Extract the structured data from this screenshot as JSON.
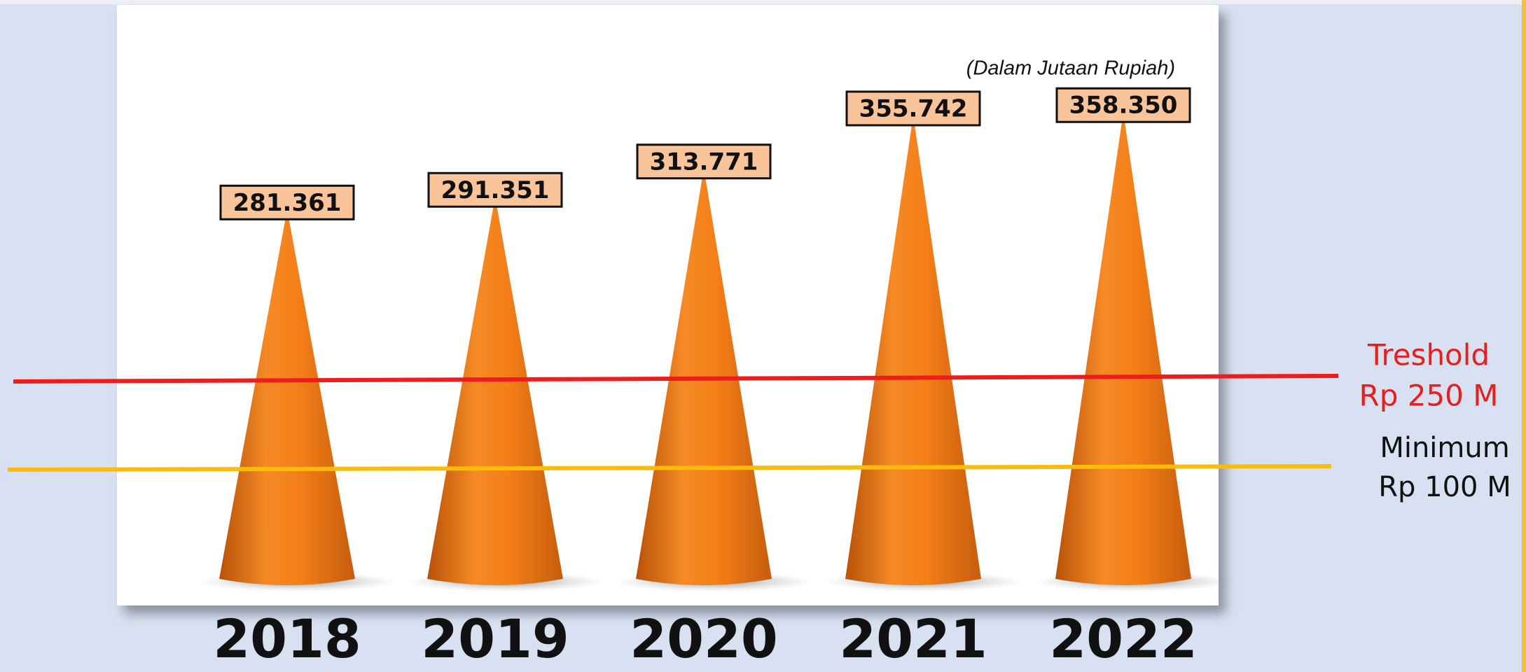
{
  "chart_data": {
    "type": "cone",
    "subtitle": "(Dalam Jutaan Rupiah)",
    "categories": [
      "2018",
      "2019",
      "2020",
      "2021",
      "2022"
    ],
    "values": [
      281361,
      291351,
      313771,
      355742,
      358350
    ],
    "value_labels": [
      "281.361",
      "291.351",
      "313.771",
      "355.742",
      "358.350"
    ],
    "color": "#f07d1a",
    "ylim": [
      -13000,
      400000
    ],
    "annotations": [
      "Treshold",
      "Rp 250 M",
      "Minimum",
      "Rp 100 M"
    ]
  }
}
